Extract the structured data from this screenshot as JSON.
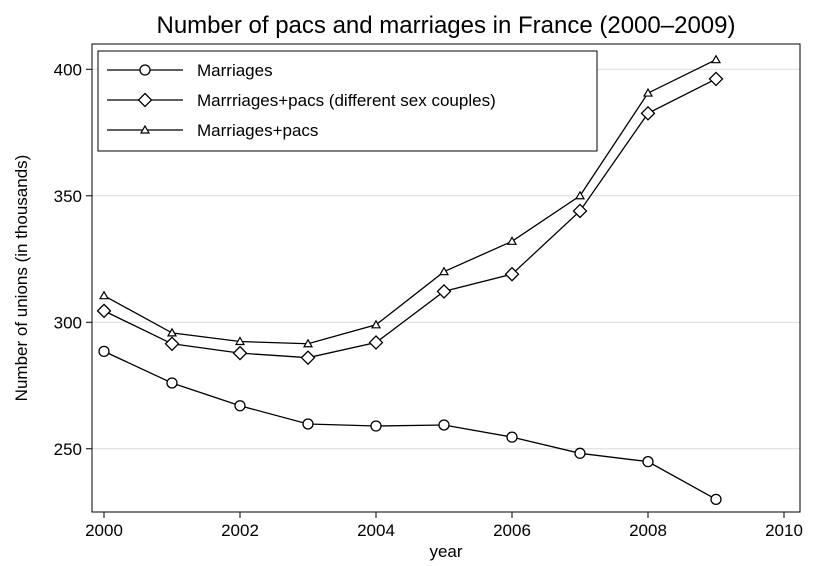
{
  "chart_data": {
    "type": "line",
    "title": "Number of pacs and marriages in France (2000–2009)",
    "xlabel": "year",
    "ylabel": "Number of unions (in thousands)",
    "xlim": [
      2000,
      2010
    ],
    "ylim": [
      225,
      410
    ],
    "x_ticks": [
      2000,
      2002,
      2004,
      2006,
      2008,
      2010
    ],
    "y_ticks": [
      250,
      300,
      350,
      400
    ],
    "grid": "horizontal",
    "legend_position": "top-left",
    "x": [
      2000,
      2001,
      2002,
      2003,
      2004,
      2005,
      2006,
      2007,
      2008,
      2009
    ],
    "series": [
      {
        "name": "Marriages",
        "marker": "circle",
        "values": [
          288.5,
          276.0,
          267.0,
          259.8,
          259.0,
          259.4,
          254.6,
          248.2,
          244.9,
          230.0
        ]
      },
      {
        "name": "Marrriages+pacs (different sex couples)",
        "marker": "diamond",
        "values": [
          304.5,
          291.5,
          287.8,
          286.0,
          292.0,
          312.2,
          319.0,
          344.0,
          382.6,
          396.2
        ]
      },
      {
        "name": "Marriages+pacs",
        "marker": "triangle",
        "values": [
          310.5,
          295.8,
          292.4,
          291.5,
          299.0,
          320.0,
          332.0,
          350.0,
          390.6,
          403.8
        ]
      }
    ]
  }
}
